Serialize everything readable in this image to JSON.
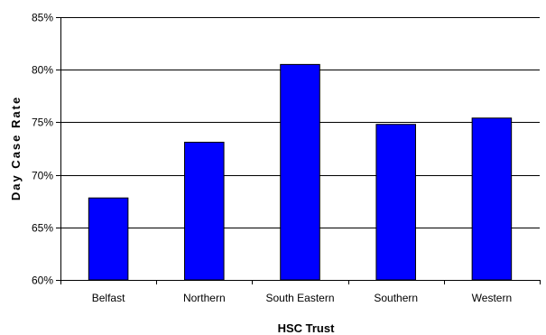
{
  "chart_data": {
    "type": "bar",
    "categories": [
      "Belfast",
      "Northern",
      "South Eastern",
      "Southern",
      "Western"
    ],
    "values": [
      67.8,
      73.1,
      80.5,
      74.8,
      75.4
    ],
    "xlabel": "HSC Trust",
    "ylabel": "Day Case Rate",
    "ylim": [
      60,
      85
    ],
    "yticks": [
      60,
      65,
      70,
      75,
      80,
      85
    ],
    "ytick_format": "percent",
    "grid": "horizontal",
    "legend": "none",
    "colors": {
      "bar_fill": "#0000ff",
      "bar_stroke": "#000000",
      "grid": "#000000",
      "axis": "#000000"
    }
  }
}
